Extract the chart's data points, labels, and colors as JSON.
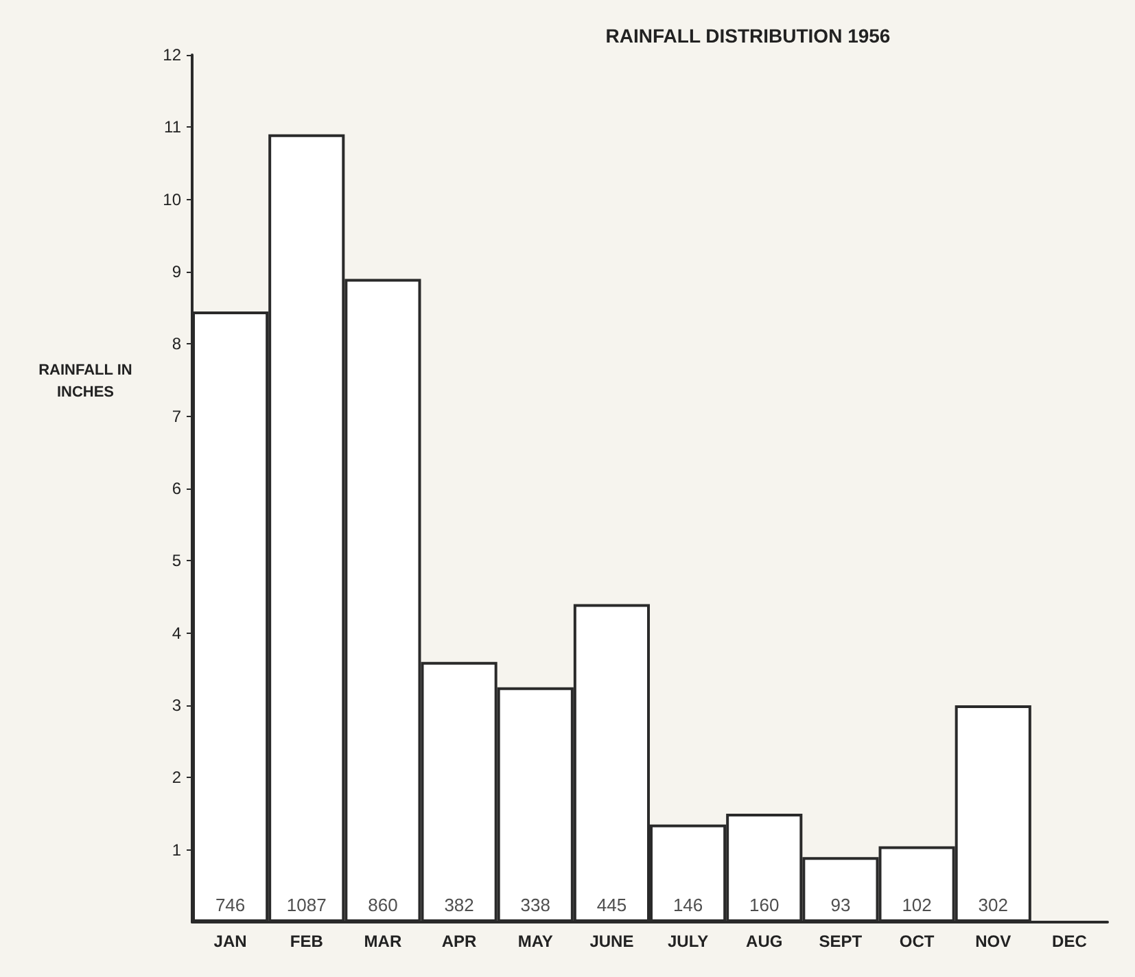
{
  "chart_data": {
    "type": "bar",
    "title": "RAINFALL DISTRIBUTION 1956",
    "ylabel": "RAINFALL IN\nINCHES",
    "categories": [
      "JAN",
      "FEB",
      "MAR",
      "APR",
      "MAY",
      "JUNE",
      "JULY",
      "AUG",
      "SEPT",
      "OCT",
      "NOV",
      "DEC"
    ],
    "values": [
      8.45,
      10.9,
      8.9,
      3.6,
      3.25,
      4.4,
      1.35,
      1.5,
      0.9,
      1.05,
      3.0,
      null
    ],
    "color": "#ffffff",
    "annotations": [
      {
        "text": "746",
        "x": "JAN",
        "y": 0
      },
      {
        "text": "1087",
        "x": "FEB",
        "y": 0
      },
      {
        "text": "860",
        "x": "MAR",
        "y": 0
      },
      {
        "text": "382",
        "x": "APR",
        "y": 0
      },
      {
        "text": "338",
        "x": "MAY",
        "y": 0
      },
      {
        "text": "445",
        "x": "JUNE",
        "y": 0
      },
      {
        "text": "146",
        "x": "JULY",
        "y": 0
      },
      {
        "text": "160",
        "x": "AUG",
        "y": 0
      },
      {
        "text": "93",
        "x": "SEPT",
        "y": 0
      },
      {
        "text": "102",
        "x": "OCT",
        "y": 0
      },
      {
        "text": "302",
        "x": "NOV",
        "y": 0
      }
    ],
    "ylim": [
      0,
      12
    ],
    "yticks": [
      1,
      2,
      3,
      4,
      5,
      6,
      7,
      8,
      9,
      10,
      11,
      12
    ],
    "grid": false
  }
}
